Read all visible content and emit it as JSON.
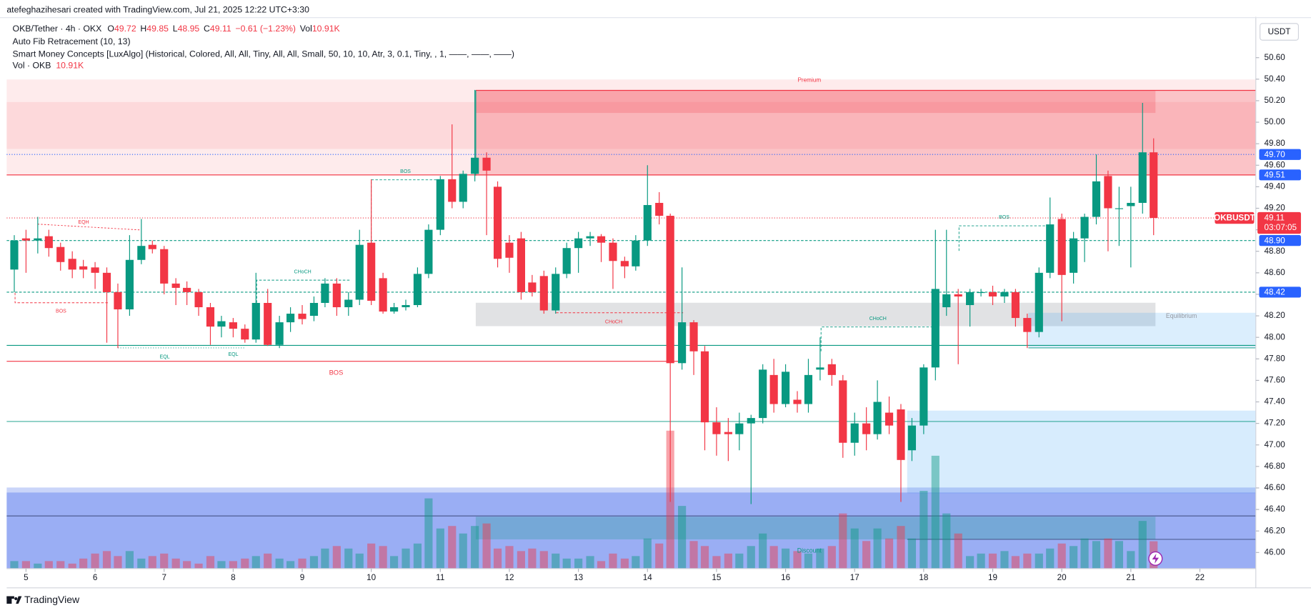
{
  "header": {
    "attribution": "atefeghazihesari created with TradingView.com, Jul 21, 2025 12:22 UTC+3:30",
    "legend": {
      "symbol": "OKB/Tether · 4h · OKX",
      "fields": [
        {
          "key": "O",
          "value": "49.72"
        },
        {
          "key": "H",
          "value": "49.85"
        },
        {
          "key": "L",
          "value": "48.95"
        },
        {
          "key": "C",
          "value": "49.11"
        }
      ],
      "change": "−0.61 (−1.23%)",
      "vol_key": "Vol",
      "vol_value": "10.91K"
    },
    "indicators": [
      "Auto Fib Retracement (10, 13)",
      "Smart Money Concepts [LuxAlgo] (Historical, Colored, All, All, Tiny, All, All, Small, 50, 10, 10, Atr, 3, 0.1, Tiny, , 1, ——, ——, ——)"
    ],
    "volume_legend": {
      "name": "Vol · OKB",
      "value": "10.91K"
    }
  },
  "footer": "TradingView",
  "chart_data": {
    "type": "candlestick",
    "x": [
      4.83,
      5,
      5.17,
      5.33,
      5.5,
      5.67,
      5.83,
      6,
      6.17,
      6.33,
      6.5,
      6.67,
      6.83,
      7,
      7.17,
      7.33,
      7.5,
      7.67,
      7.83,
      8,
      8.17,
      8.33,
      8.5,
      8.67,
      8.83,
      9,
      9.17,
      9.33,
      9.5,
      9.67,
      9.83,
      10,
      10.17,
      10.33,
      10.5,
      10.67,
      10.83,
      11,
      11.17,
      11.33,
      11.5,
      11.67,
      11.83,
      12,
      12.17,
      12.33,
      12.5,
      12.67,
      12.83,
      13,
      13.17,
      13.33,
      13.5,
      13.67,
      13.83,
      14,
      14.17,
      14.33,
      14.5,
      14.67,
      14.83,
      15,
      15.17,
      15.33,
      15.5,
      15.67,
      15.83,
      16,
      16.17,
      16.33,
      16.5,
      16.67,
      16.83,
      17,
      17.17,
      17.33,
      17.5,
      17.67,
      17.83,
      18,
      18.17,
      18.33,
      18.5,
      18.67,
      18.83,
      19,
      19.17,
      19.33,
      19.5,
      19.67,
      19.83,
      20,
      20.17,
      20.33,
      20.5,
      20.67,
      20.83,
      21,
      21.17,
      21.33
    ],
    "open": [
      48.63,
      48.92,
      48.9,
      48.94,
      48.84,
      48.73,
      48.66,
      48.65,
      48.6,
      48.42,
      48.26,
      48.72,
      48.86,
      48.82,
      48.5,
      48.46,
      48.42,
      48.28,
      48.1,
      48.14,
      48.08,
      47.98,
      48.32,
      47.93,
      48.14,
      48.22,
      48.2,
      48.32,
      48.5,
      48.28,
      48.35,
      48.88,
      48.55,
      48.24,
      48.28,
      48.3,
      48.59,
      49.0,
      49.47,
      49.26,
      49.52,
      49.67,
      49.4,
      48.88,
      48.92,
      48.51,
      48.57,
      48.25,
      48.59,
      48.83,
      48.92,
      48.94,
      48.88,
      48.71,
      48.66,
      48.9,
      49.25,
      49.13,
      47.76,
      48.14,
      47.87,
      47.21,
      47.12,
      47.1,
      47.2,
      47.25,
      47.65,
      47.38,
      47.42,
      47.38,
      47.7,
      47.75,
      47.6,
      47.02,
      47.2,
      47.1,
      47.3,
      47.33,
      46.95,
      47.18,
      47.72,
      48.28,
      48.4,
      48.3,
      48.42,
      48.42,
      48.38,
      48.42,
      48.18,
      48.05,
      48.6,
      49.1,
      48.6,
      48.92,
      49.12,
      49.5,
      49.2,
      49.22,
      49.25,
      49.72
    ],
    "high": [
      48.95,
      49.0,
      49.12,
      49.0,
      48.88,
      48.8,
      48.72,
      48.7,
      48.65,
      48.5,
      48.95,
      49.1,
      48.9,
      48.85,
      48.55,
      48.52,
      48.45,
      48.32,
      48.2,
      48.18,
      48.12,
      48.6,
      48.45,
      48.2,
      48.28,
      48.3,
      48.38,
      48.55,
      48.55,
      48.42,
      49.0,
      49.47,
      48.6,
      48.32,
      48.35,
      48.65,
      49.05,
      49.5,
      49.98,
      49.55,
      50.3,
      49.72,
      49.45,
      48.95,
      48.98,
      48.58,
      48.62,
      48.65,
      48.88,
      48.98,
      48.98,
      48.96,
      48.92,
      48.75,
      48.95,
      49.6,
      49.35,
      49.15,
      48.65,
      48.16,
      47.92,
      47.35,
      47.25,
      47.3,
      47.28,
      47.75,
      47.8,
      47.75,
      47.5,
      47.8,
      48.0,
      47.8,
      47.65,
      47.3,
      47.35,
      47.6,
      47.45,
      47.38,
      47.25,
      47.75,
      49.0,
      49.0,
      48.45,
      48.45,
      48.45,
      48.48,
      48.45,
      48.45,
      48.22,
      48.65,
      49.3,
      49.15,
      48.98,
      49.15,
      49.7,
      49.55,
      49.4,
      49.4,
      50.18,
      49.85
    ],
    "low": [
      48.42,
      48.6,
      48.78,
      48.75,
      48.62,
      48.55,
      48.55,
      48.45,
      47.95,
      47.9,
      48.2,
      48.68,
      48.78,
      48.4,
      48.3,
      48.3,
      48.2,
      47.93,
      48.0,
      48.0,
      47.95,
      47.95,
      47.92,
      47.9,
      48.05,
      48.12,
      48.15,
      48.28,
      48.2,
      48.2,
      48.3,
      48.3,
      48.22,
      48.22,
      48.25,
      48.28,
      48.55,
      48.95,
      49.2,
      49.2,
      49.45,
      48.95,
      48.65,
      48.6,
      48.35,
      48.38,
      48.22,
      48.22,
      48.55,
      48.6,
      48.85,
      48.7,
      48.45,
      48.55,
      48.62,
      48.85,
      49.05,
      46.47,
      47.7,
      47.65,
      46.95,
      46.9,
      46.85,
      46.95,
      46.45,
      47.2,
      47.3,
      47.35,
      47.3,
      47.3,
      47.6,
      47.55,
      46.88,
      46.9,
      46.95,
      47.05,
      47.1,
      46.47,
      46.85,
      47.1,
      47.6,
      48.2,
      47.75,
      48.1,
      48.38,
      48.3,
      48.32,
      48.1,
      47.9,
      48.0,
      48.55,
      48.15,
      48.5,
      48.7,
      49.05,
      48.8,
      48.85,
      48.65,
      49.15,
      48.95
    ],
    "close": [
      48.9,
      48.9,
      48.92,
      48.83,
      48.7,
      48.63,
      48.63,
      48.6,
      48.42,
      48.26,
      48.72,
      48.85,
      48.82,
      48.5,
      48.46,
      48.42,
      48.28,
      48.1,
      48.15,
      48.08,
      47.98,
      48.32,
      47.93,
      48.14,
      48.22,
      48.17,
      48.32,
      48.5,
      48.28,
      48.35,
      48.86,
      48.34,
      48.24,
      48.28,
      48.3,
      48.59,
      49.0,
      49.47,
      49.26,
      49.52,
      49.67,
      49.55,
      48.73,
      48.74,
      48.42,
      48.42,
      48.25,
      48.59,
      48.83,
      48.92,
      48.94,
      48.88,
      48.71,
      48.66,
      48.9,
      49.23,
      49.13,
      47.76,
      48.14,
      47.87,
      47.21,
      47.1,
      47.1,
      47.2,
      47.25,
      47.7,
      47.38,
      47.68,
      47.38,
      47.65,
      47.72,
      47.65,
      47.02,
      47.2,
      47.1,
      47.4,
      47.18,
      46.86,
      47.18,
      47.72,
      48.45,
      48.4,
      48.38,
      48.42,
      48.42,
      48.38,
      48.42,
      48.18,
      48.05,
      48.6,
      49.05,
      48.58,
      48.92,
      49.12,
      49.45,
      49.2,
      49.2,
      49.25,
      49.72,
      49.11
    ],
    "volume": [
      3,
      3,
      2,
      3,
      3,
      2,
      4,
      6,
      7,
      5,
      7,
      4,
      5,
      6,
      4,
      3,
      2,
      5,
      3,
      3,
      4,
      5,
      6,
      4,
      3,
      4,
      5,
      8,
      9,
      8,
      6,
      10,
      9,
      5,
      8,
      10,
      28,
      16,
      17,
      14,
      17,
      18,
      8,
      9,
      7,
      8,
      7,
      6,
      4,
      4,
      5,
      3,
      6,
      4,
      5,
      12,
      10,
      55,
      25,
      11,
      9,
      5,
      6,
      6,
      9,
      14,
      9,
      8,
      7,
      6,
      8,
      9,
      22,
      16,
      11,
      16,
      12,
      17,
      12,
      31,
      45,
      22,
      14,
      5,
      6,
      6,
      7,
      5,
      6,
      6,
      8,
      10,
      9,
      12,
      11,
      12,
      11,
      7,
      19,
      10.91
    ],
    "up_color": "#089981",
    "down_color": "#f23645",
    "xlim": [
      4.72,
      22.81
    ],
    "xticks": [
      5,
      6,
      7,
      8,
      9,
      10,
      11,
      12,
      13,
      14,
      15,
      16,
      17,
      18,
      19,
      20,
      21,
      22
    ],
    "ylim": [
      45.85,
      50.98
    ],
    "yticks": [
      {
        "value": 46,
        "label": "46.00"
      },
      {
        "value": 46.2,
        "label": "46.20"
      },
      {
        "value": 46.4,
        "label": "46.40"
      },
      {
        "value": 46.6,
        "label": "46.60"
      },
      {
        "value": 46.8,
        "label": "46.80"
      },
      {
        "value": 47,
        "label": "47.00"
      },
      {
        "value": 47.2,
        "label": "47.20"
      },
      {
        "value": 47.4,
        "label": "47.40"
      },
      {
        "value": 47.6,
        "label": "47.60"
      },
      {
        "value": 47.8,
        "label": "47.80"
      },
      {
        "value": 48,
        "label": "48.00"
      },
      {
        "value": 48.2,
        "label": "48.20"
      },
      {
        "value": 48.4,
        "label": "48.40"
      },
      {
        "value": 48.6,
        "label": "48.60"
      },
      {
        "value": 48.8,
        "label": "48.80"
      },
      {
        "value": 49,
        "label": "49.00"
      },
      {
        "value": 49.2,
        "label": "49.20"
      },
      {
        "value": 49.4,
        "label": "49.40"
      },
      {
        "value": 49.6,
        "label": "49.60"
      },
      {
        "value": 49.8,
        "label": "49.80"
      },
      {
        "value": 50,
        "label": "50.00"
      },
      {
        "value": 50.2,
        "label": "50.20"
      },
      {
        "value": 50.4,
        "label": "50.40"
      },
      {
        "value": 50.6,
        "label": "50.60"
      }
    ],
    "volume_ylim": [
      0,
      60
    ],
    "grid": false,
    "price_lines": [
      {
        "value": 49.7,
        "label": "49.70",
        "color": "#2962ff"
      },
      {
        "value": 49.51,
        "label": "49.51",
        "color": "#f23645"
      },
      {
        "value": 48.9,
        "label": "48.90",
        "color": "#089981"
      },
      {
        "value": 48.42,
        "label": "48.42",
        "color": "#089981"
      }
    ],
    "last_price": {
      "symbol": "OKBUSDT",
      "value": 49.11,
      "countdown": "03:07:05"
    },
    "currency": "USDT",
    "annotations": [
      "Premium",
      "EQH",
      "BOS",
      "BOS",
      "CHoCH",
      "EQL",
      "EQL",
      "BOS",
      "CHoCH",
      "CHoCH",
      "BOS",
      "Equilibrium",
      "Discount"
    ]
  }
}
